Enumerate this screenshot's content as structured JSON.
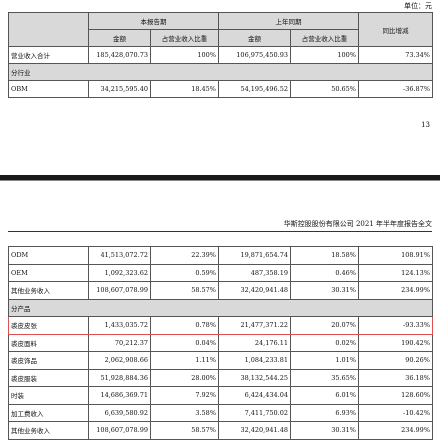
{
  "header": {
    "unit": "单位：元"
  },
  "table1": {
    "header_groups": [
      "本报告期",
      "上年同期"
    ],
    "change_header": "同比增减",
    "subheaders": [
      "金额",
      "占营业收入比重",
      "金额",
      "占营业收入比重"
    ],
    "rows": [
      [
        "营业收入合计",
        "185,428,070.73",
        "100%",
        "106,975,450.93",
        "100%",
        "73.34%"
      ],
      [
        "分行业"
      ],
      [
        "OBM",
        "34,215,595.40",
        "18.45%",
        "54,195,496.52",
        "50.65%",
        "-36.87%"
      ]
    ]
  },
  "page_number": "13",
  "page2_header": "华斯控股股份有限公司 2021 年半年度报告全文",
  "table2": {
    "rows": [
      [
        "ODM",
        "41,513,072.72",
        "22.39%",
        "19,871,654.74",
        "18.58%",
        "108.91%"
      ],
      [
        "OEM",
        "1,092,323.62",
        "0.59%",
        "487,358.19",
        "0.46%",
        "124.13%"
      ],
      [
        "其他业务收入",
        "108,607,078.99",
        "58.57%",
        "32,420,941.48",
        "30.31%",
        "234.99%"
      ],
      [
        "分产品"
      ],
      [
        "裘皮皮张",
        "1,433,035.72",
        "0.78%",
        "21,477,371.22",
        "20.07%",
        "-93.33%"
      ],
      [
        "裘皮面料",
        "70,212.37",
        "0.04%",
        "24,176.11",
        "0.02%",
        "190.42%"
      ],
      [
        "裘皮饰品",
        "2,062,908.66",
        "1.11%",
        "1,084,233.81",
        "1.01%",
        "90.26%"
      ],
      [
        "裘皮服装",
        "51,928,884.36",
        "28.00%",
        "38,132,544.25",
        "35.65%",
        "36.18%"
      ],
      [
        "时装",
        "14,686,369.71",
        "7.92%",
        "6,424,434.04",
        "6.01%",
        "128.60%"
      ],
      [
        "加工费收入",
        "6,639,580.92",
        "3.58%",
        "7,411,750.02",
        "6.93%",
        "-10.42%"
      ],
      [
        "其他业务收入",
        "108,607,078.99",
        "58.57%",
        "32,420,941.48",
        "30.31%",
        "234.99%"
      ]
    ]
  }
}
